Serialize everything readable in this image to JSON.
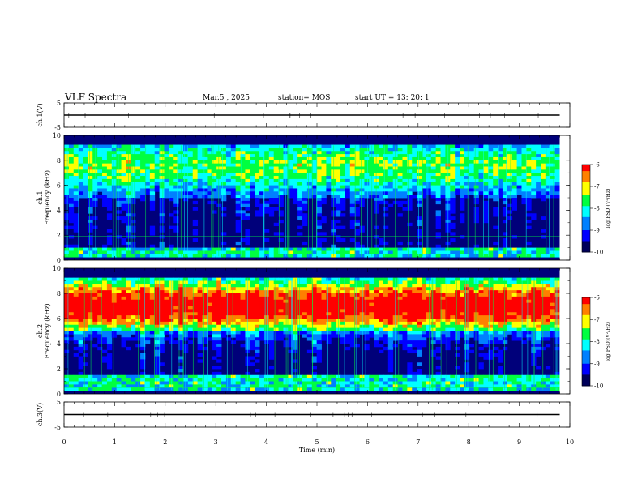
{
  "header": {
    "title": "VLF Spectra",
    "date": "Mar.5 , 2025",
    "station": "station= MOS",
    "start_ut": "start UT = 13: 20: 1"
  },
  "colors": {
    "background_low": "#00007a",
    "colormap": [
      "#000000",
      "#00005a",
      "#0000ff",
      "#0080ff",
      "#00ffff",
      "#00ff40",
      "#ffff00",
      "#ff8000",
      "#ff0000"
    ]
  },
  "chart_data": [
    {
      "type": "line",
      "panel": "ch1-waveform",
      "ylabel": "ch.1(V)",
      "ylim": [
        -5,
        5
      ],
      "yticks": [
        "5",
        "-5"
      ],
      "xlim": [
        0,
        10
      ],
      "series": [
        {
          "x": [
            0,
            9.8
          ],
          "y": [
            0,
            0
          ]
        }
      ]
    },
    {
      "type": "heatmap",
      "panel": "ch1-spectrogram",
      "ylabel": "ch.1 Frequency (kHz)",
      "ylim": [
        0,
        10
      ],
      "yticks": [
        "0",
        "2",
        "4",
        "6",
        "8",
        "10"
      ],
      "xlim": [
        0,
        10
      ],
      "data_end_min": 9.8,
      "band_center_khz": 7.5,
      "band_intensity": 0.45,
      "low_band_khz": [
        0.3,
        1.0
      ],
      "colorbar": {
        "label": "log(PSD)(V²/Hz)",
        "range": [
          -10,
          -6
        ],
        "ticks": [
          "-6",
          "-7",
          "-8",
          "-9",
          "-10"
        ]
      }
    },
    {
      "type": "heatmap",
      "panel": "ch2-spectrogram",
      "ylabel": "ch.2 Frequency (kHz)",
      "ylim": [
        0,
        10
      ],
      "yticks": [
        "0",
        "2",
        "4",
        "6",
        "8",
        "10"
      ],
      "xlim": [
        0,
        10
      ],
      "data_end_min": 9.8,
      "band_center_khz": 7.0,
      "band_intensity": 0.9,
      "low_band_khz": [
        0.3,
        1.5
      ],
      "colorbar": {
        "label": "log(PSD)(V²/Hz)",
        "range": [
          -10,
          -6
        ],
        "ticks": [
          "-6",
          "-7",
          "-8",
          "-9",
          "-10"
        ]
      }
    },
    {
      "type": "line",
      "panel": "ch3-waveform",
      "ylabel": "ch.3(V)",
      "ylim": [
        -5,
        5
      ],
      "yticks": [
        "5",
        "-5"
      ],
      "xlim": [
        0,
        10
      ],
      "xlabel": "Time (min)",
      "xticks": [
        "0",
        "1",
        "2",
        "3",
        "4",
        "5",
        "6",
        "7",
        "8",
        "9",
        "10"
      ],
      "series": [
        {
          "x": [
            0,
            9.8
          ],
          "y": [
            0,
            0
          ]
        }
      ]
    }
  ]
}
